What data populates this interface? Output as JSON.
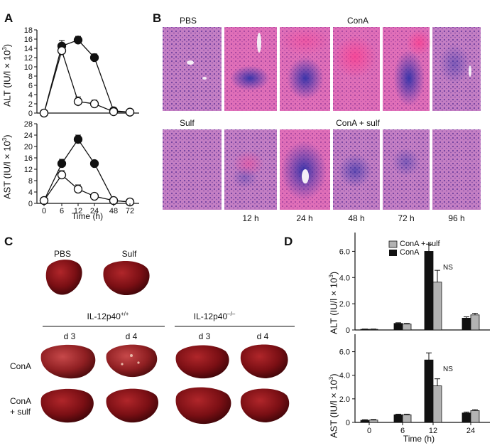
{
  "panels": {
    "a": "A",
    "b": "B",
    "c": "C",
    "d": "D"
  },
  "panel_a": {
    "xlabel": "Time (h)",
    "x_ticks": [
      0,
      6,
      12,
      24,
      48,
      72
    ],
    "alt": {
      "ylabel": "ALT (IU/l × 10",
      "ylabel_sup": "3",
      "ylabel_end": ")",
      "y_ticks": [
        0,
        2,
        4,
        6,
        8,
        10,
        12,
        14,
        16,
        18
      ],
      "ylim": [
        0,
        18
      ]
    },
    "ast": {
      "ylabel": "AST (IU/l × 10",
      "ylabel_sup": "3",
      "ylabel_end": ")",
      "y_ticks": [
        0,
        4,
        8,
        12,
        16,
        20,
        24,
        28
      ],
      "ylim": [
        0,
        28
      ]
    }
  },
  "panel_b": {
    "row1_left": "PBS",
    "row1_right": "ConA",
    "row2_left": "Sulf",
    "row2_right": "ConA + sulf",
    "times": [
      "12 h",
      "24 h",
      "48 h",
      "72 h",
      "96 h"
    ]
  },
  "panel_c": {
    "pbs": "PBS",
    "sulf": "Sulf",
    "wt": "IL-12p40",
    "wt_sup": "+/+",
    "ko": "IL-12p40",
    "ko_sup": "–/–",
    "days": [
      "d 3",
      "d 4",
      "d 3",
      "d 4"
    ],
    "row_cona": "ConA",
    "row_conasulf_1": "ConA",
    "row_conasulf_2": "+ sulf"
  },
  "panel_d": {
    "legend_sulf": "ConA + sulf",
    "legend_cona": "ConA",
    "ns1": "NS",
    "ns2": "NS",
    "xlabel": "Time (h)",
    "alt_ylabel": "ALT (IU/l × 10",
    "ast_ylabel": "AST (IU/l × 10",
    "ylabel_sup": "3",
    "ylabel_end": ")",
    "y_ticks": [
      "0",
      "2.0",
      "4.0",
      "6.0"
    ],
    "x_ticks": [
      "0",
      "6",
      "12",
      "24"
    ]
  },
  "chart_data": [
    {
      "type": "line",
      "panel": "A-top",
      "x": [
        0,
        6,
        12,
        24,
        48,
        72
      ],
      "ylim": [
        0,
        18
      ],
      "series": [
        {
          "marker": "filled",
          "values": [
            0,
            14.5,
            15.8,
            12,
            0.5,
            0.2
          ],
          "errors": [
            0,
            1.2,
            0.8,
            0.8,
            0.2,
            0.1
          ]
        },
        {
          "marker": "open",
          "values": [
            0,
            13.5,
            2.5,
            2,
            0.3,
            0.2
          ],
          "errors": [
            0,
            1,
            1,
            0.8,
            0.2,
            0.1
          ]
        }
      ]
    },
    {
      "type": "line",
      "panel": "A-bottom",
      "x": [
        0,
        6,
        12,
        24,
        48,
        72
      ],
      "ylim": [
        0,
        28
      ],
      "series": [
        {
          "marker": "filled",
          "values": [
            1,
            14,
            22.5,
            14,
            1,
            0.5
          ],
          "errors": [
            0,
            1.5,
            1.5,
            1,
            0.3,
            0.2
          ]
        },
        {
          "marker": "open",
          "values": [
            1,
            10,
            5,
            2.5,
            1,
            0.5
          ],
          "errors": [
            0,
            1.5,
            1.5,
            0.6,
            0.2,
            0.2
          ]
        }
      ]
    },
    {
      "type": "bar",
      "panel": "D-top",
      "categories": [
        "0",
        "6",
        "12",
        "24"
      ],
      "ylim": [
        0,
        7
      ],
      "series": [
        {
          "name": "ConA",
          "values": [
            0.05,
            0.5,
            6.0,
            0.9
          ],
          "errors": [
            0.02,
            0.05,
            0.55,
            0.1
          ]
        },
        {
          "name": "ConA + sulf",
          "values": [
            0.05,
            0.45,
            3.65,
            1.15
          ],
          "errors": [
            0.02,
            0.05,
            0.9,
            0.12
          ]
        }
      ]
    },
    {
      "type": "bar",
      "panel": "D-bottom",
      "categories": [
        "0",
        "6",
        "12",
        "24"
      ],
      "ylim": [
        0,
        7
      ],
      "series": [
        {
          "name": "ConA",
          "values": [
            0.18,
            0.65,
            5.3,
            0.8
          ],
          "errors": [
            0.05,
            0.05,
            0.6,
            0.08
          ]
        },
        {
          "name": "ConA + sulf",
          "values": [
            0.2,
            0.65,
            3.1,
            1.0
          ],
          "errors": [
            0.05,
            0.05,
            0.6,
            0.08
          ]
        }
      ]
    }
  ]
}
